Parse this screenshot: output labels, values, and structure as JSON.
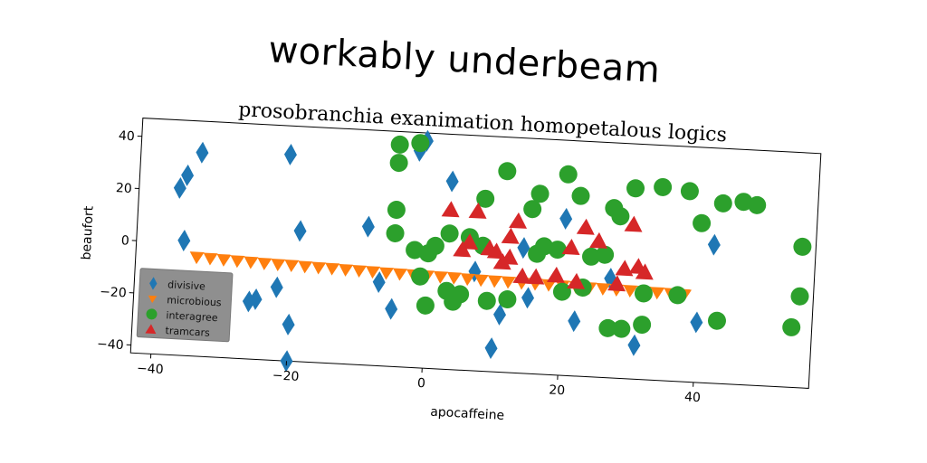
{
  "chart_data": {
    "type": "scatter",
    "title": "workably underbeam",
    "subtitle": "prosobranchia exanimation homopetalous logics",
    "xlabel": "apocaffeine",
    "ylabel": "beaufort",
    "xlim": [
      -43,
      57
    ],
    "ylim": [
      -43,
      47
    ],
    "x_ticks": [
      -40,
      -20,
      0,
      20,
      40
    ],
    "y_ticks": [
      -40,
      -20,
      0,
      20,
      40
    ],
    "grid": false,
    "legend_position": "bottom-left",
    "series": [
      {
        "name": "divisive",
        "marker": "thin_diamond",
        "color": "#1f77b4",
        "points": [
          [
            -37,
            21
          ],
          [
            -36,
            26
          ],
          [
            -34,
            35
          ],
          [
            -36,
            1
          ],
          [
            -21,
            36
          ],
          [
            -19,
            7
          ],
          [
            -22,
            -15
          ],
          [
            -26,
            -21
          ],
          [
            -25,
            -20
          ],
          [
            -20,
            -29
          ],
          [
            -20,
            -43
          ],
          [
            -9,
            10
          ],
          [
            -7,
            -11
          ],
          [
            -5,
            -21
          ],
          [
            -2,
            40
          ],
          [
            -1,
            44
          ],
          [
            3,
            29
          ],
          [
            7,
            -5
          ],
          [
            10,
            -34
          ],
          [
            11,
            -21
          ],
          [
            15,
            -14
          ],
          [
            20,
            17
          ],
          [
            22,
            -22
          ],
          [
            27,
            -5
          ],
          [
            31,
            -30
          ],
          [
            40,
            -20
          ],
          [
            42,
            10
          ],
          [
            14,
            5
          ]
        ]
      },
      {
        "name": "microbious",
        "marker": "triangle_down",
        "color": "#ff7f0e",
        "points": [
          [
            -34,
            -5
          ],
          [
            -32,
            -5.2
          ],
          [
            -30,
            -5.4
          ],
          [
            -28,
            -5.6
          ],
          [
            -26,
            -5.8
          ],
          [
            -24,
            -6
          ],
          [
            -22,
            -6.1
          ],
          [
            -20,
            -6.2
          ],
          [
            -18,
            -6.4
          ],
          [
            -16,
            -6.5
          ],
          [
            -14,
            -6.6
          ],
          [
            -12,
            -6.8
          ],
          [
            -10,
            -6.9
          ],
          [
            -8,
            -7
          ],
          [
            -6,
            -7.2
          ],
          [
            -4,
            -7.3
          ],
          [
            -2,
            -7.4
          ],
          [
            0,
            -7.5
          ],
          [
            2,
            -7.6
          ],
          [
            4,
            -7.7
          ],
          [
            6,
            -7.9
          ],
          [
            8,
            -8
          ],
          [
            10,
            -8.1
          ],
          [
            12,
            -8.2
          ],
          [
            14,
            -8.3
          ],
          [
            16,
            -8.4
          ],
          [
            18,
            -8.5
          ],
          [
            20,
            -8.6
          ],
          [
            22,
            -8.7
          ],
          [
            24,
            -8.8
          ],
          [
            26,
            -8.9
          ],
          [
            28,
            -9
          ],
          [
            30,
            -9.1
          ],
          [
            32,
            -9.2
          ],
          [
            34,
            -9.3
          ],
          [
            36,
            -9.4
          ],
          [
            38,
            -9.5
          ]
        ]
      },
      {
        "name": "interagree",
        "marker": "circle",
        "color": "#2ca02c",
        "points": [
          [
            -5,
            42
          ],
          [
            -2,
            43
          ],
          [
            -5,
            35
          ],
          [
            -5,
            17
          ],
          [
            -5,
            8
          ],
          [
            -2,
            2
          ],
          [
            0,
            1
          ],
          [
            1,
            4
          ],
          [
            3,
            9
          ],
          [
            6,
            8
          ],
          [
            -1,
            -8
          ],
          [
            3,
            -13
          ],
          [
            5,
            -14
          ],
          [
            4,
            -17
          ],
          [
            0,
            -19
          ],
          [
            9,
            -16
          ],
          [
            12,
            -15
          ],
          [
            8,
            5
          ],
          [
            8,
            23
          ],
          [
            11,
            34
          ],
          [
            15,
            20
          ],
          [
            16,
            26
          ],
          [
            17,
            6
          ],
          [
            16,
            3
          ],
          [
            19,
            5
          ],
          [
            20,
            34
          ],
          [
            22,
            26
          ],
          [
            24,
            3
          ],
          [
            26,
            4
          ],
          [
            28,
            19
          ],
          [
            27,
            22
          ],
          [
            30,
            30
          ],
          [
            23,
            -9
          ],
          [
            20,
            -11
          ],
          [
            27,
            -24
          ],
          [
            29,
            -24
          ],
          [
            32,
            -22
          ],
          [
            32,
            -10
          ],
          [
            34,
            31
          ],
          [
            37,
            -10
          ],
          [
            38,
            30
          ],
          [
            40,
            18
          ],
          [
            43,
            26
          ],
          [
            46,
            27
          ],
          [
            48,
            26
          ],
          [
            43,
            -19
          ],
          [
            55,
            11
          ],
          [
            55,
            -8
          ],
          [
            54,
            -20
          ]
        ]
      },
      {
        "name": "tramcars",
        "marker": "triangle_up",
        "color": "#d62728",
        "points": [
          [
            3,
            18
          ],
          [
            7,
            18
          ],
          [
            6,
            6
          ],
          [
            5,
            3
          ],
          [
            9,
            4
          ],
          [
            10,
            3
          ],
          [
            11,
            -1
          ],
          [
            12,
            1
          ],
          [
            13,
            15
          ],
          [
            12,
            9
          ],
          [
            14,
            -6
          ],
          [
            16,
            -6
          ],
          [
            19,
            -5
          ],
          [
            21,
            6
          ],
          [
            22,
            -7
          ],
          [
            23,
            14
          ],
          [
            25,
            9
          ],
          [
            28,
            -7
          ],
          [
            29,
            -1
          ],
          [
            30,
            16
          ],
          [
            31,
            0
          ],
          [
            32,
            -2
          ]
        ]
      }
    ]
  }
}
